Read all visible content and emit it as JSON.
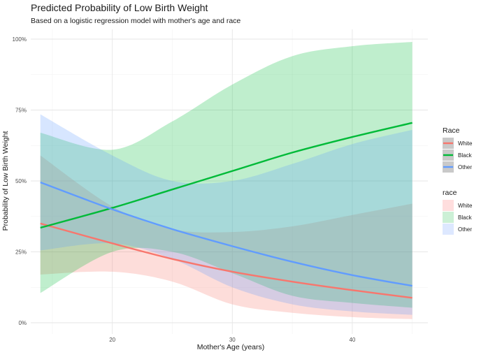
{
  "chart_data": {
    "type": "line",
    "title": "Predicted Probability of Low Birth Weight",
    "subtitle": "Based on a logistic regression model with mother's age and race",
    "xlabel": "Mother's Age (years)",
    "ylabel": "Probability of Low Birth Weight",
    "xlim": [
      14,
      45
    ],
    "ylim": [
      0,
      1
    ],
    "x_ticks": [
      20,
      30,
      40
    ],
    "x_tick_labels": [
      "20",
      "30",
      "40"
    ],
    "y_ticks": [
      0,
      0.25,
      0.5,
      0.75,
      1.0
    ],
    "y_tick_labels": [
      "0%",
      "25%",
      "50%",
      "75%",
      "100%"
    ],
    "x": [
      14,
      20,
      25,
      30,
      35,
      40,
      45
    ],
    "series": [
      {
        "name": "White",
        "color": "#f8766d",
        "band_color": "#ffdede",
        "values": [
          0.35,
          0.28,
          0.225,
          0.18,
          0.145,
          0.115,
          0.088
        ],
        "lower": [
          0.17,
          0.18,
          0.145,
          0.065,
          0.035,
          0.02,
          0.013
        ],
        "upper": [
          0.59,
          0.41,
          0.33,
          0.32,
          0.34,
          0.38,
          0.42
        ]
      },
      {
        "name": "Black",
        "color": "#00ba38",
        "band_color": "#ccf0d6",
        "values": [
          0.335,
          0.405,
          0.47,
          0.535,
          0.6,
          0.655,
          0.705
        ],
        "lower": [
          0.105,
          0.25,
          0.25,
          0.175,
          0.095,
          0.07,
          0.053
        ],
        "upper": [
          0.67,
          0.61,
          0.71,
          0.84,
          0.94,
          0.975,
          0.99
        ]
      },
      {
        "name": "Other",
        "color": "#619cff",
        "band_color": "#dde8ff",
        "values": [
          0.495,
          0.4,
          0.33,
          0.27,
          0.215,
          0.168,
          0.13
        ],
        "lower": [
          0.255,
          0.28,
          0.225,
          0.125,
          0.065,
          0.04,
          0.028
        ],
        "upper": [
          0.735,
          0.59,
          0.5,
          0.5,
          0.56,
          0.63,
          0.68
        ]
      }
    ],
    "legends": [
      {
        "title": "Race",
        "entries": [
          "White",
          "Black",
          "Other"
        ]
      },
      {
        "title": "race",
        "entries": [
          "White",
          "Black",
          "Other"
        ]
      }
    ],
    "grid": true,
    "legend_position": "right"
  }
}
